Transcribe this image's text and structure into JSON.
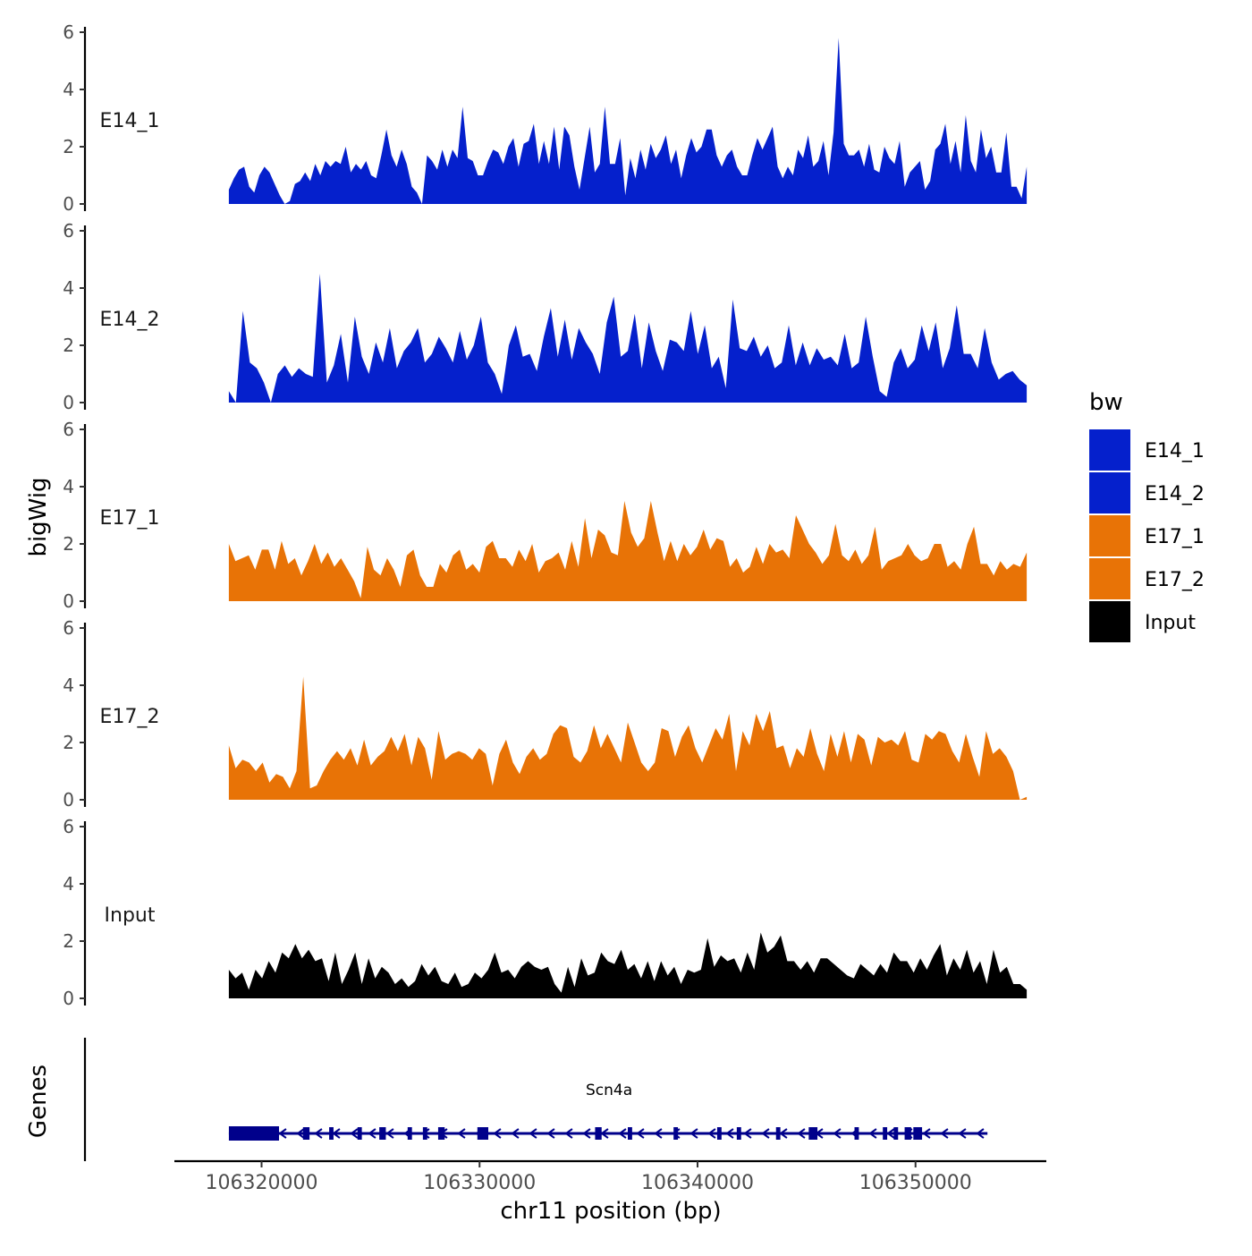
{
  "chart_data": {
    "type": "area",
    "title": "",
    "ylabel": "bigWig",
    "xlabel": "chr11 position (bp)",
    "xlim": [
      106316000,
      106356000
    ],
    "ylim": [
      0,
      6
    ],
    "y_ticks": [
      0,
      2,
      4,
      6
    ],
    "x_ticks": [
      106320000,
      106330000,
      106340000,
      106350000
    ],
    "x_tick_labels": [
      "106320000",
      "106330000",
      "106340000",
      "106350000"
    ],
    "bin_start": 106318500,
    "bin_end": 106355100,
    "series": [
      {
        "name": "E14_1",
        "label": "E14_1",
        "color": "#0520CC",
        "values": [
          0.5,
          0.9,
          1.2,
          1.3,
          0.6,
          0.4,
          1.0,
          1.3,
          1.1,
          0.7,
          0.3,
          0.0,
          0.1,
          0.7,
          0.8,
          1.1,
          0.8,
          1.4,
          1.0,
          1.5,
          1.3,
          1.5,
          1.4,
          2.0,
          1.1,
          1.4,
          1.2,
          1.5,
          1.0,
          0.9,
          1.7,
          2.6,
          1.7,
          1.3,
          1.9,
          1.4,
          0.6,
          0.4,
          0.0,
          1.7,
          1.5,
          1.2,
          1.9,
          1.3,
          1.9,
          1.6,
          3.4,
          1.6,
          1.5,
          1.0,
          1.0,
          1.5,
          1.9,
          1.8,
          1.4,
          2.0,
          2.3,
          1.3,
          2.1,
          2.2,
          2.8,
          1.4,
          2.2,
          1.4,
          2.7,
          1.2,
          2.7,
          2.4,
          1.3,
          0.5,
          1.6,
          2.7,
          1.1,
          1.4,
          3.4,
          1.4,
          1.4,
          2.3,
          0.3,
          1.6,
          0.9,
          1.9,
          1.2,
          2.1,
          1.6,
          1.9,
          2.4,
          1.4,
          1.9,
          0.9,
          1.7,
          2.3,
          1.8,
          2.0,
          2.6,
          2.6,
          1.7,
          1.3,
          1.7,
          1.9,
          1.3,
          1.0,
          1.0,
          1.7,
          2.3,
          1.9,
          2.3,
          2.7,
          1.3,
          0.9,
          1.3,
          1.0,
          1.9,
          1.6,
          2.4,
          1.3,
          1.5,
          2.2,
          1.0,
          2.5,
          5.8,
          2.1,
          1.7,
          1.7,
          1.9,
          1.3,
          2.1,
          1.2,
          1.1,
          2.0,
          1.6,
          1.4,
          2.2,
          0.6,
          1.1,
          1.3,
          1.5,
          0.5,
          0.8,
          1.9,
          2.1,
          2.8,
          1.4,
          2.2,
          1.1,
          3.1,
          1.5,
          1.1,
          2.6,
          1.6,
          2.0,
          1.1,
          1.1,
          2.5,
          0.6,
          0.6,
          0.2,
          1.3
        ]
      },
      {
        "name": "E14_2",
        "label": "E14_2",
        "color": "#0520CC",
        "values": [
          0.4,
          0.0,
          3.2,
          1.4,
          1.2,
          0.7,
          0.0,
          1.0,
          1.3,
          0.9,
          1.2,
          1.0,
          0.9,
          4.5,
          0.7,
          1.3,
          2.4,
          0.7,
          3.0,
          1.6,
          1.0,
          2.1,
          1.4,
          2.6,
          1.2,
          1.8,
          2.1,
          2.6,
          1.4,
          1.7,
          2.3,
          1.9,
          1.4,
          2.5,
          1.5,
          2.0,
          3.0,
          1.4,
          1.0,
          0.3,
          2.0,
          2.7,
          1.6,
          1.7,
          1.1,
          2.3,
          3.3,
          1.6,
          2.9,
          1.5,
          2.6,
          2.1,
          1.7,
          1.0,
          2.8,
          3.7,
          1.6,
          1.8,
          3.1,
          1.2,
          2.8,
          1.8,
          1.1,
          2.2,
          2.1,
          1.8,
          3.2,
          1.7,
          2.7,
          1.2,
          1.6,
          0.5,
          3.6,
          1.9,
          1.8,
          2.3,
          1.6,
          2.0,
          1.2,
          1.4,
          2.7,
          1.3,
          2.1,
          1.3,
          1.9,
          1.5,
          1.6,
          1.3,
          2.4,
          1.2,
          1.4,
          3.0,
          1.6,
          0.4,
          0.2,
          1.4,
          1.9,
          1.2,
          1.5,
          2.7,
          1.8,
          2.8,
          1.2,
          1.9,
          3.4,
          1.7,
          1.7,
          1.2,
          2.6,
          1.4,
          0.8,
          1.0,
          1.1,
          0.8,
          0.6
        ]
      },
      {
        "name": "E17_1",
        "label": "E17_1",
        "color": "#E87306",
        "values": [
          2.0,
          1.4,
          1.5,
          1.6,
          1.1,
          1.8,
          1.8,
          1.1,
          2.1,
          1.3,
          1.5,
          0.9,
          1.4,
          2.0,
          1.3,
          1.7,
          1.2,
          1.5,
          1.1,
          0.7,
          0.1,
          1.9,
          1.1,
          0.9,
          1.5,
          1.1,
          0.5,
          1.6,
          1.8,
          0.9,
          0.5,
          0.5,
          1.3,
          1.0,
          1.6,
          1.8,
          1.1,
          1.3,
          1.0,
          1.9,
          2.1,
          1.5,
          1.5,
          1.2,
          1.8,
          1.4,
          2.0,
          1.0,
          1.4,
          1.5,
          1.7,
          1.1,
          2.1,
          1.2,
          2.9,
          1.5,
          2.5,
          2.3,
          1.7,
          1.6,
          3.5,
          2.4,
          1.9,
          2.2,
          3.5,
          2.4,
          1.4,
          2.1,
          1.4,
          2.0,
          1.6,
          1.9,
          2.5,
          1.8,
          2.2,
          2.1,
          1.2,
          1.5,
          1.0,
          1.2,
          1.9,
          1.3,
          2.0,
          1.7,
          1.8,
          1.5,
          3.0,
          2.5,
          2.0,
          1.7,
          1.3,
          1.6,
          2.7,
          1.6,
          1.4,
          1.8,
          1.3,
          1.6,
          2.6,
          1.1,
          1.4,
          1.5,
          1.6,
          2.0,
          1.6,
          1.4,
          1.5,
          2.0,
          2.0,
          1.2,
          1.4,
          1.1,
          2.0,
          2.6,
          1.3,
          1.3,
          0.9,
          1.4,
          1.1,
          1.3,
          1.2,
          1.7
        ]
      },
      {
        "name": "E17_2",
        "label": "E17_2",
        "color": "#E87306",
        "values": [
          1.9,
          1.1,
          1.4,
          1.3,
          1.0,
          1.3,
          0.6,
          0.9,
          0.8,
          0.4,
          1.0,
          4.3,
          0.4,
          0.5,
          1.0,
          1.4,
          1.7,
          1.4,
          1.8,
          1.2,
          2.1,
          1.2,
          1.5,
          1.7,
          2.2,
          1.7,
          2.3,
          1.2,
          2.2,
          1.8,
          0.7,
          2.4,
          1.4,
          1.6,
          1.7,
          1.6,
          1.4,
          1.8,
          1.6,
          0.5,
          1.6,
          2.1,
          1.3,
          0.9,
          1.5,
          1.8,
          1.4,
          1.6,
          2.3,
          2.6,
          2.5,
          1.5,
          1.3,
          1.7,
          2.6,
          1.8,
          2.3,
          1.8,
          1.3,
          2.7,
          2.0,
          1.3,
          1.0,
          1.3,
          2.5,
          2.4,
          1.5,
          2.2,
          2.6,
          1.8,
          1.3,
          1.9,
          2.5,
          2.1,
          3.0,
          1.0,
          2.4,
          1.9,
          3.0,
          2.4,
          3.1,
          1.8,
          1.9,
          1.1,
          1.8,
          1.5,
          2.5,
          1.6,
          1.0,
          2.3,
          1.5,
          2.4,
          1.3,
          2.3,
          2.1,
          1.2,
          2.2,
          2.0,
          2.1,
          1.9,
          2.4,
          1.4,
          1.3,
          2.3,
          2.1,
          2.4,
          2.3,
          1.7,
          1.3,
          2.3,
          1.5,
          0.8,
          2.4,
          1.6,
          1.8,
          1.5,
          1.0,
          0.0,
          0.1
        ]
      },
      {
        "name": "Input",
        "label": "Input",
        "color": "#000000",
        "values": [
          1.0,
          0.7,
          0.9,
          0.3,
          1.0,
          0.7,
          1.3,
          0.9,
          1.6,
          1.4,
          1.9,
          1.4,
          1.7,
          1.3,
          1.4,
          0.6,
          1.6,
          0.5,
          1.0,
          1.6,
          0.5,
          1.4,
          0.7,
          1.1,
          0.9,
          0.5,
          0.7,
          0.4,
          0.6,
          1.2,
          0.8,
          1.1,
          0.6,
          0.5,
          0.9,
          0.4,
          0.5,
          0.9,
          0.7,
          1.0,
          1.6,
          0.9,
          1.0,
          0.7,
          1.1,
          1.3,
          1.1,
          1.0,
          1.1,
          0.5,
          0.2,
          1.1,
          0.4,
          1.4,
          0.8,
          0.9,
          1.6,
          1.3,
          1.2,
          1.7,
          1.0,
          1.2,
          0.7,
          1.3,
          0.6,
          1.3,
          0.8,
          1.1,
          0.5,
          1.0,
          0.9,
          1.0,
          2.1,
          1.1,
          1.5,
          1.3,
          1.4,
          0.9,
          1.6,
          1.0,
          2.3,
          1.6,
          1.8,
          2.2,
          1.3,
          1.3,
          1.0,
          1.3,
          0.9,
          1.4,
          1.4,
          1.2,
          1.0,
          0.8,
          0.7,
          1.2,
          1.0,
          0.8,
          1.2,
          0.9,
          1.6,
          1.3,
          1.3,
          0.9,
          1.4,
          1.0,
          1.5,
          1.9,
          0.8,
          1.4,
          1.0,
          1.7,
          0.9,
          1.3,
          0.5,
          1.7,
          0.9,
          1.1,
          0.5,
          0.5,
          0.3
        ]
      }
    ],
    "legend": {
      "title": "bw",
      "position": "right",
      "entries": [
        {
          "label": "E14_1",
          "color": "#0520CC"
        },
        {
          "label": "E14_2",
          "color": "#0520CC"
        },
        {
          "label": "E17_1",
          "color": "#E87306"
        },
        {
          "label": "E17_2",
          "color": "#E87306"
        },
        {
          "label": "Input",
          "color": "#000000"
        }
      ]
    },
    "gene_track": {
      "title": "Genes",
      "gene": "Scn4a",
      "strand": "-",
      "color": "#00008B",
      "start": 106318500,
      "end": 106353300,
      "exons": [
        [
          106318500,
          106320800
        ],
        [
          106321900,
          106322200
        ],
        [
          106323100,
          106323300
        ],
        [
          106324400,
          106324600
        ],
        [
          106325400,
          106325700
        ],
        [
          106326700,
          106326900
        ],
        [
          106327400,
          106327600
        ],
        [
          106328100,
          106328400
        ],
        [
          106329900,
          106330400
        ],
        [
          106335300,
          106335600
        ],
        [
          106336800,
          106337000
        ],
        [
          106338900,
          106339100
        ],
        [
          106340900,
          106341100
        ],
        [
          106341800,
          106342000
        ],
        [
          106343600,
          106343800
        ],
        [
          106345100,
          106345500
        ],
        [
          106347200,
          106347400
        ],
        [
          106348500,
          106348700
        ],
        [
          106349000,
          106349200
        ],
        [
          106349500,
          106349800
        ],
        [
          106349900,
          106350300
        ]
      ]
    }
  }
}
